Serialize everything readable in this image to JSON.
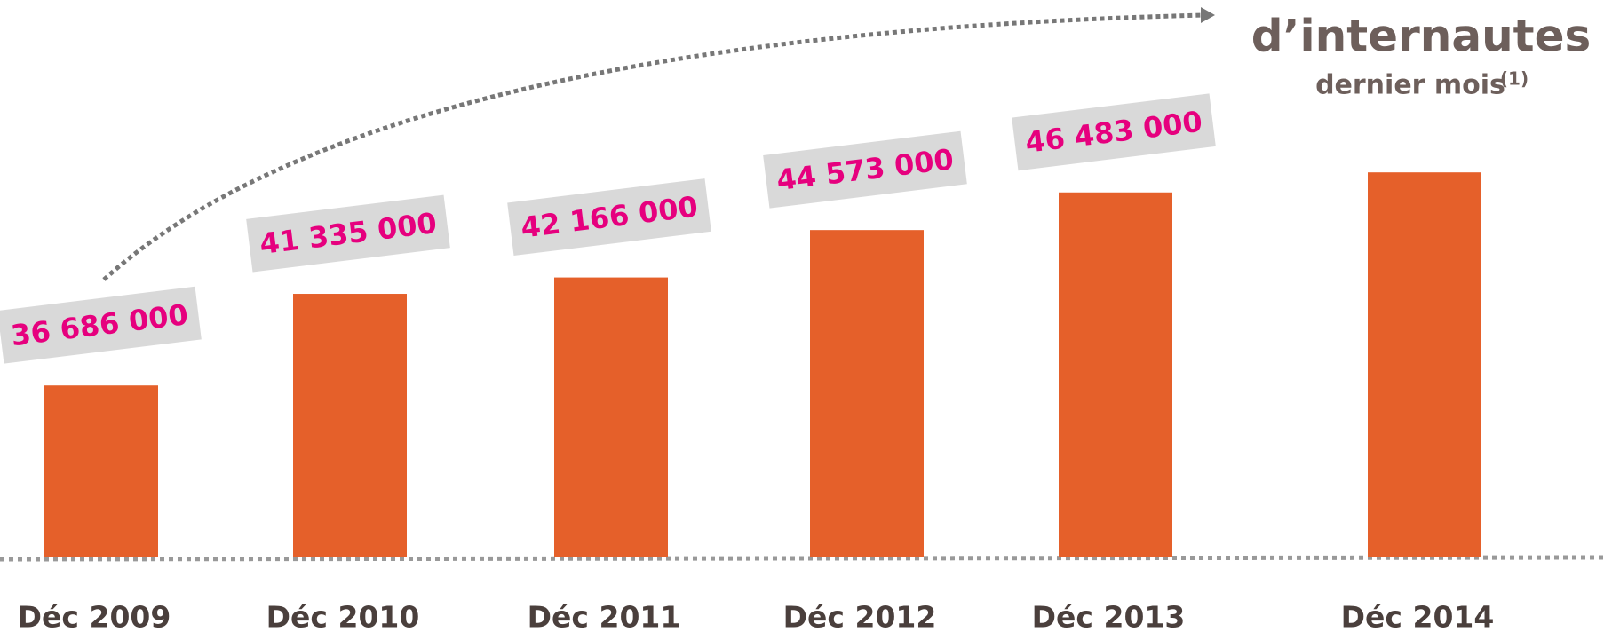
{
  "chart_data": {
    "type": "bar",
    "title": "d’internautes",
    "subtitle": "dernier mois",
    "note": "(1)",
    "categories": [
      "Déc 2009",
      "Déc 2010",
      "Déc 2011",
      "Déc 2012",
      "Déc 2013",
      "Déc 2014"
    ],
    "values": [
      36686000,
      41335000,
      42166000,
      44573000,
      46483000,
      47500000
    ],
    "value_labels": [
      "36 686  000",
      "41 335 000",
      "42 166 000",
      "44 573 000",
      "46 483 000",
      null
    ],
    "color": "#e5602a",
    "label_color": "#e6007e",
    "ylim": [
      28000000,
      48500000
    ]
  }
}
